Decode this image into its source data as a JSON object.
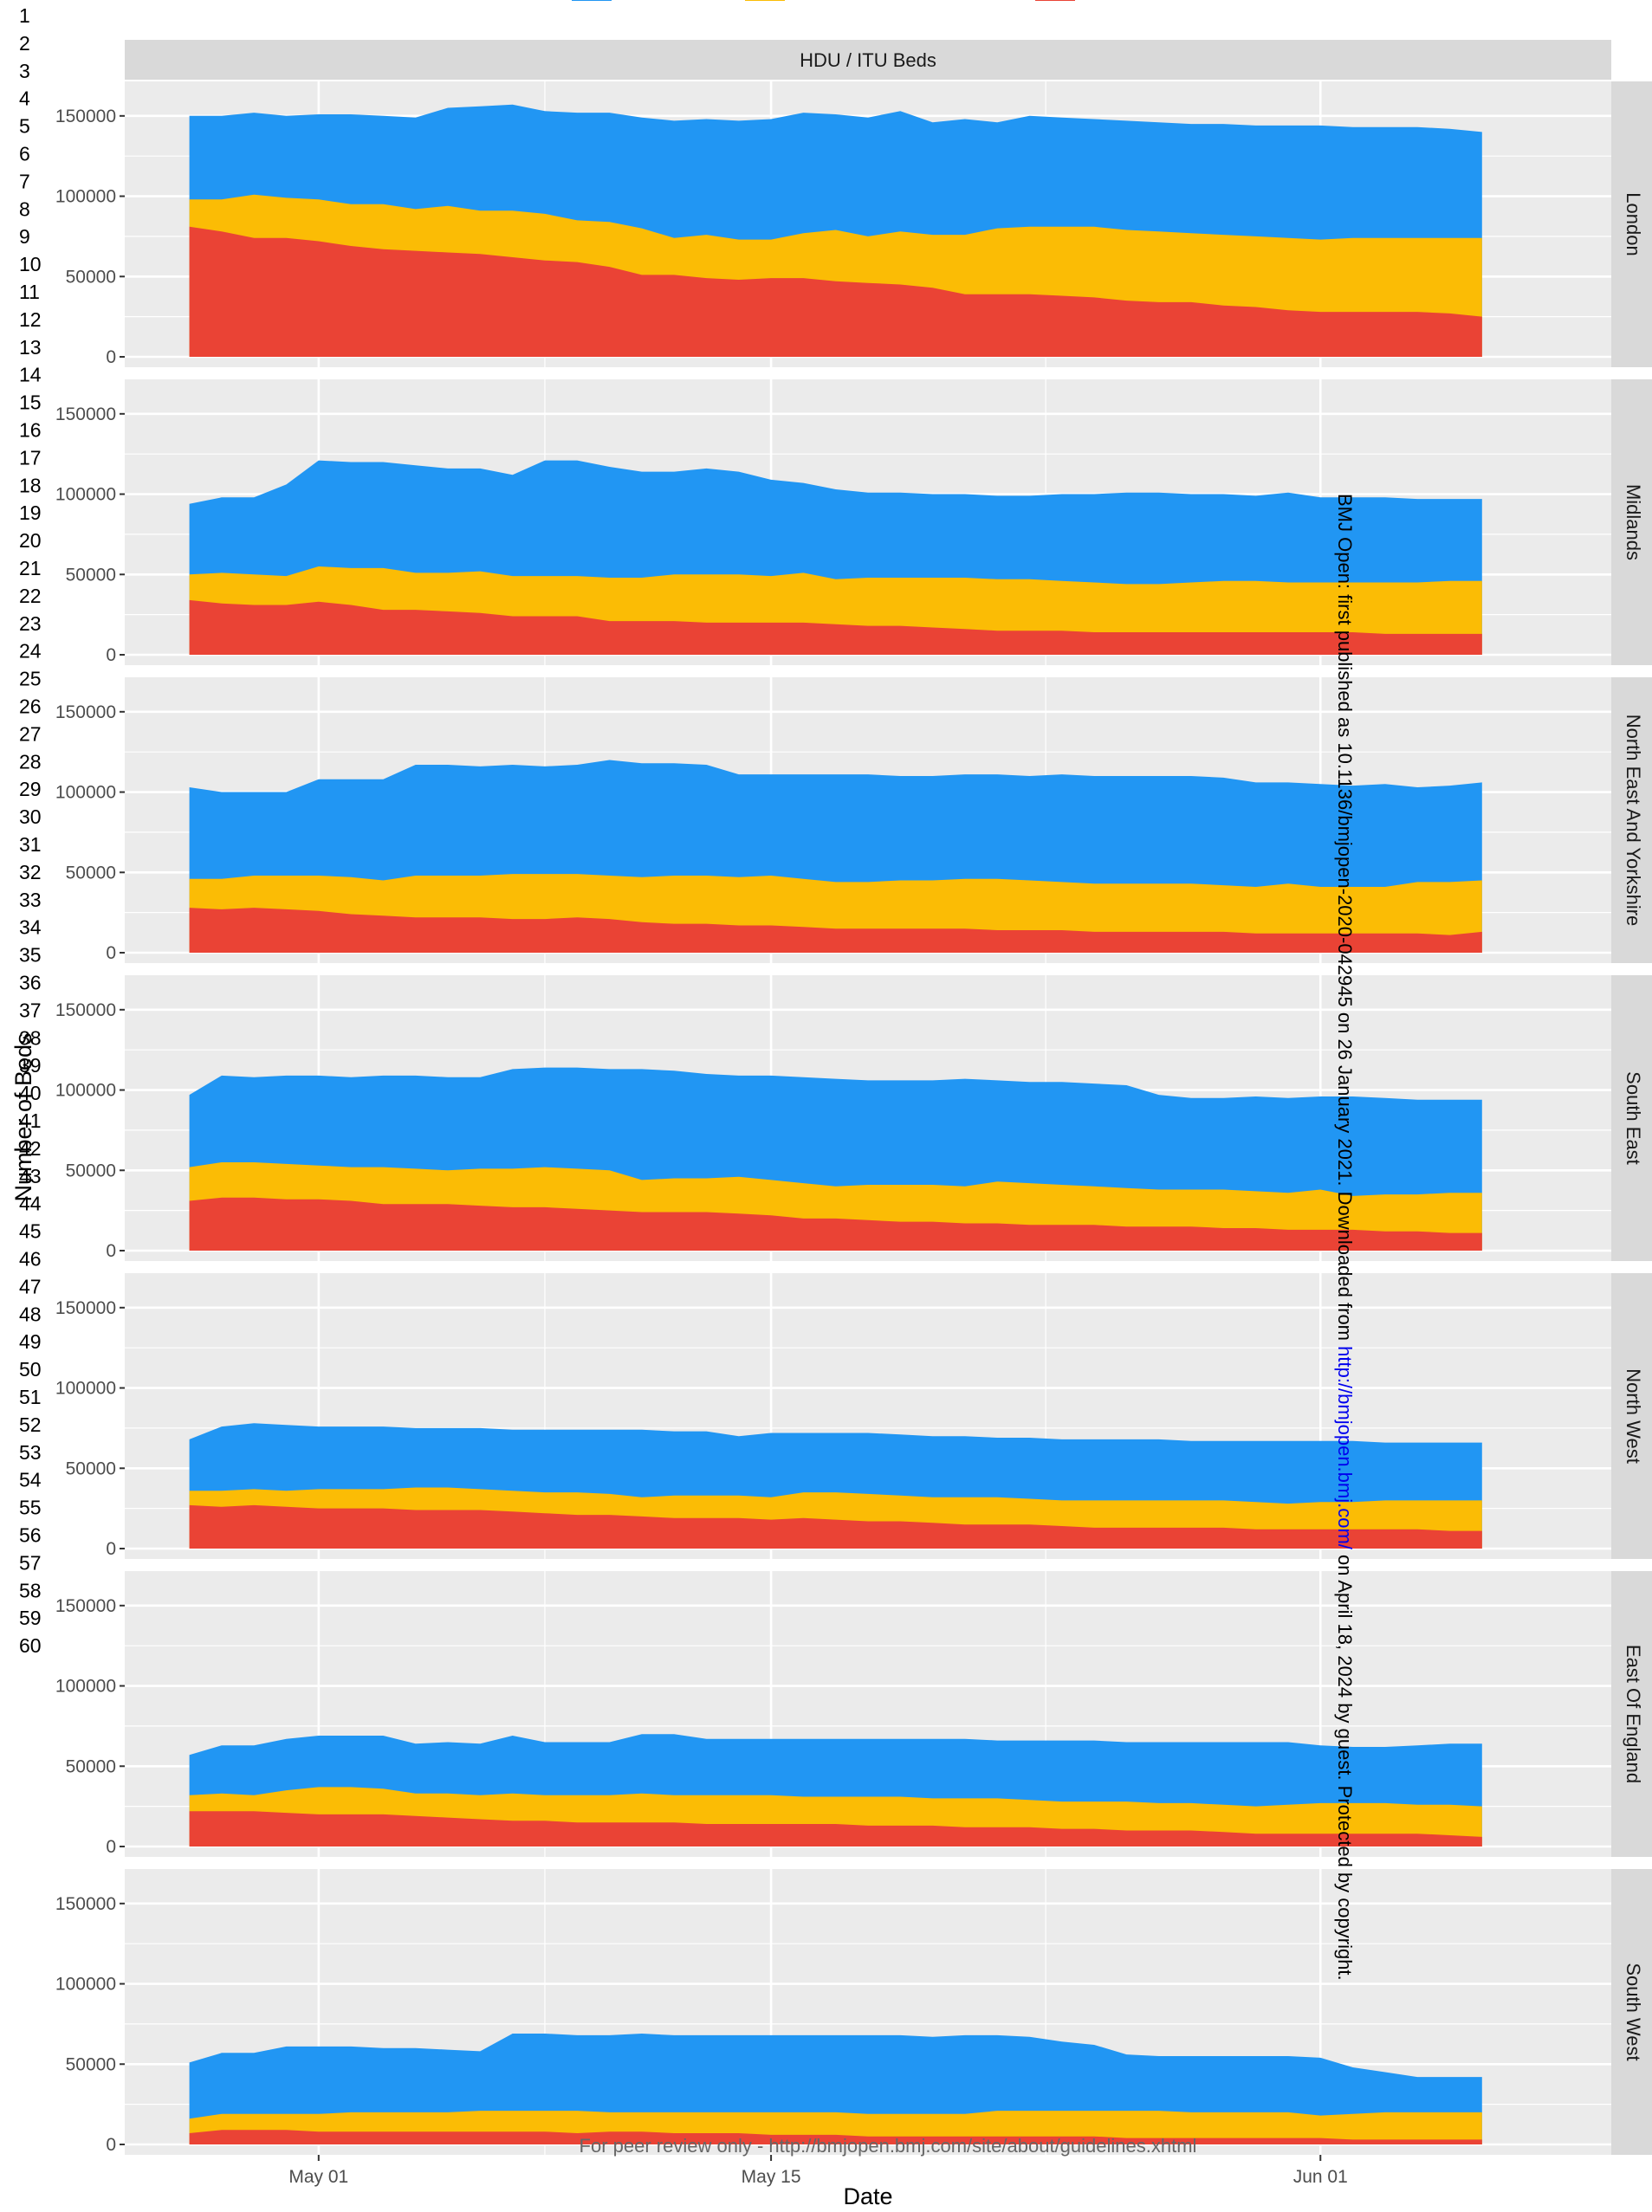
{
  "page_line_numbers": [
    "1",
    "2",
    "3",
    "4",
    "5",
    "6",
    "7",
    "8",
    "9",
    "10",
    "11",
    "12",
    "13",
    "14",
    "15",
    "16",
    "17",
    "18",
    "19",
    "20",
    "21",
    "22",
    "23",
    "24",
    "25",
    "26",
    "27",
    "28",
    "29",
    "30",
    "31",
    "32",
    "33",
    "34",
    "35",
    "36",
    "37",
    "38",
    "39",
    "40",
    "41",
    "42",
    "43",
    "44",
    "45",
    "46",
    "47",
    "48",
    "49",
    "50",
    "51",
    "52",
    "53",
    "54",
    "55",
    "56",
    "57",
    "58",
    "59",
    "60"
  ],
  "colors": {
    "series": [
      "#2196f3",
      "#fbbc05",
      "#ea4335"
    ],
    "panel_bg": "#ebebeb",
    "strip_bg": "#d9d9d9",
    "grid": "#ffffff"
  },
  "chart_data": {
    "type": "area",
    "stacked": true,
    "title": "HDU / ITU Beds",
    "xlabel": "Date",
    "ylabel": "Number of Beds",
    "ylim": [
      0,
      165000
    ],
    "yticks": [
      0,
      50000,
      100000,
      150000
    ],
    "ytick_labels": [
      "0",
      "50000",
      "100000",
      "150000"
    ],
    "xlim": [
      "2020-04-25",
      "2020-06-10"
    ],
    "xticks": [
      "2020-05-01",
      "2020-05-15",
      "2020-06-01"
    ],
    "xtick_labels": [
      "May 01",
      "May 15",
      "Jun 01"
    ],
    "grid": true,
    "legend": "top, entries cut off",
    "start_date": "2020-04-27",
    "end_date": "2020-06-06",
    "series_names": [
      "",
      "",
      ""
    ],
    "panels": [
      {
        "region": "London",
        "red": [
          81000,
          78000,
          74000,
          74000,
          72000,
          69000,
          67000,
          66000,
          65000,
          64000,
          62000,
          60000,
          59000,
          56000,
          51000,
          51000,
          49000,
          48000,
          49000,
          49000,
          47000,
          46000,
          45000,
          43000,
          39000,
          39000,
          39000,
          38000,
          37000,
          35000,
          34000,
          34000,
          32000,
          31000,
          29000,
          28000,
          28000,
          28000,
          28000,
          27000,
          25000
        ],
        "yellow": [
          98000,
          98000,
          101000,
          99000,
          98000,
          95000,
          95000,
          92000,
          94000,
          91000,
          91000,
          89000,
          85000,
          84000,
          80000,
          74000,
          76000,
          73000,
          73000,
          77000,
          79000,
          75000,
          78000,
          76000,
          76000,
          80000,
          81000,
          81000,
          81000,
          79000,
          78000,
          77000,
          76000,
          75000,
          74000,
          73000,
          74000,
          74000,
          74000,
          74000,
          74000
        ],
        "total": [
          150000,
          150000,
          152000,
          150000,
          151000,
          151000,
          150000,
          149000,
          155000,
          156000,
          157000,
          153000,
          152000,
          152000,
          149000,
          147000,
          148000,
          147000,
          148000,
          152000,
          151000,
          149000,
          153000,
          146000,
          148000,
          146000,
          150000,
          149000,
          148000,
          147000,
          146000,
          145000,
          145000,
          144000,
          144000,
          144000,
          143000,
          143000,
          143000,
          142000,
          140000
        ]
      },
      {
        "region": "Midlands",
        "red": [
          34000,
          32000,
          31000,
          31000,
          33000,
          31000,
          28000,
          28000,
          27000,
          26000,
          24000,
          24000,
          24000,
          21000,
          21000,
          21000,
          20000,
          20000,
          20000,
          20000,
          19000,
          18000,
          18000,
          17000,
          16000,
          15000,
          15000,
          15000,
          14000,
          14000,
          14000,
          14000,
          14000,
          14000,
          14000,
          14000,
          14000,
          13000,
          13000,
          13000,
          13000
        ],
        "yellow": [
          50000,
          51000,
          50000,
          49000,
          55000,
          54000,
          54000,
          51000,
          51000,
          52000,
          49000,
          49000,
          49000,
          48000,
          48000,
          50000,
          50000,
          50000,
          49000,
          51000,
          47000,
          48000,
          48000,
          48000,
          48000,
          47000,
          47000,
          46000,
          45000,
          44000,
          44000,
          45000,
          46000,
          46000,
          45000,
          45000,
          45000,
          45000,
          45000,
          46000,
          46000
        ],
        "total": [
          94000,
          98000,
          98000,
          106000,
          121000,
          120000,
          120000,
          118000,
          116000,
          116000,
          112000,
          121000,
          121000,
          117000,
          114000,
          114000,
          116000,
          114000,
          109000,
          107000,
          103000,
          101000,
          101000,
          100000,
          100000,
          99000,
          99000,
          100000,
          100000,
          101000,
          101000,
          100000,
          100000,
          99000,
          101000,
          98000,
          98000,
          98000,
          97000,
          97000,
          97000
        ]
      },
      {
        "region": "North East And Yorkshire",
        "red": [
          28000,
          27000,
          28000,
          27000,
          26000,
          24000,
          23000,
          22000,
          22000,
          22000,
          21000,
          21000,
          22000,
          21000,
          19000,
          18000,
          18000,
          17000,
          17000,
          16000,
          15000,
          15000,
          15000,
          15000,
          15000,
          14000,
          14000,
          14000,
          13000,
          13000,
          13000,
          13000,
          13000,
          12000,
          12000,
          12000,
          12000,
          12000,
          12000,
          11000,
          13000
        ],
        "yellow": [
          46000,
          46000,
          48000,
          48000,
          48000,
          47000,
          45000,
          48000,
          48000,
          48000,
          49000,
          49000,
          49000,
          48000,
          47000,
          48000,
          48000,
          47000,
          48000,
          46000,
          44000,
          44000,
          45000,
          45000,
          46000,
          46000,
          45000,
          44000,
          43000,
          43000,
          43000,
          43000,
          42000,
          41000,
          43000,
          41000,
          41000,
          41000,
          44000,
          44000,
          45000
        ],
        "total": [
          103000,
          100000,
          100000,
          100000,
          108000,
          108000,
          108000,
          117000,
          117000,
          116000,
          117000,
          116000,
          117000,
          120000,
          118000,
          118000,
          117000,
          111000,
          111000,
          111000,
          111000,
          111000,
          110000,
          110000,
          111000,
          111000,
          110000,
          111000,
          110000,
          110000,
          110000,
          110000,
          109000,
          106000,
          106000,
          105000,
          104000,
          105000,
          103000,
          104000,
          106000
        ]
      },
      {
        "region": "South East",
        "red": [
          31000,
          33000,
          33000,
          32000,
          32000,
          31000,
          29000,
          29000,
          29000,
          28000,
          27000,
          27000,
          26000,
          25000,
          24000,
          24000,
          24000,
          23000,
          22000,
          20000,
          20000,
          19000,
          18000,
          18000,
          17000,
          17000,
          16000,
          16000,
          16000,
          15000,
          15000,
          15000,
          14000,
          14000,
          13000,
          13000,
          13000,
          12000,
          12000,
          11000,
          11000
        ],
        "yellow": [
          52000,
          55000,
          55000,
          54000,
          53000,
          52000,
          52000,
          51000,
          50000,
          51000,
          51000,
          52000,
          51000,
          50000,
          44000,
          45000,
          45000,
          46000,
          44000,
          42000,
          40000,
          41000,
          41000,
          41000,
          40000,
          43000,
          42000,
          41000,
          40000,
          39000,
          38000,
          38000,
          38000,
          37000,
          36000,
          38000,
          34000,
          35000,
          35000,
          36000,
          36000
        ],
        "total": [
          97000,
          109000,
          108000,
          109000,
          109000,
          108000,
          109000,
          109000,
          108000,
          108000,
          113000,
          114000,
          114000,
          113000,
          113000,
          112000,
          110000,
          109000,
          109000,
          108000,
          107000,
          106000,
          106000,
          106000,
          107000,
          106000,
          105000,
          105000,
          104000,
          103000,
          97000,
          95000,
          95000,
          96000,
          95000,
          96000,
          96000,
          95000,
          94000,
          94000,
          94000
        ]
      },
      {
        "region": "North West",
        "red": [
          27000,
          26000,
          27000,
          26000,
          25000,
          25000,
          25000,
          24000,
          24000,
          24000,
          23000,
          22000,
          21000,
          21000,
          20000,
          19000,
          19000,
          19000,
          18000,
          19000,
          18000,
          17000,
          17000,
          16000,
          15000,
          15000,
          15000,
          14000,
          13000,
          13000,
          13000,
          13000,
          13000,
          12000,
          12000,
          12000,
          12000,
          12000,
          12000,
          11000,
          11000
        ],
        "yellow": [
          36000,
          36000,
          37000,
          36000,
          37000,
          37000,
          37000,
          38000,
          38000,
          37000,
          36000,
          35000,
          35000,
          34000,
          32000,
          33000,
          33000,
          33000,
          32000,
          35000,
          35000,
          34000,
          33000,
          32000,
          32000,
          32000,
          31000,
          30000,
          30000,
          30000,
          30000,
          30000,
          30000,
          29000,
          28000,
          29000,
          29000,
          30000,
          30000,
          30000,
          30000
        ],
        "total": [
          68000,
          76000,
          78000,
          77000,
          76000,
          76000,
          76000,
          75000,
          75000,
          75000,
          74000,
          74000,
          74000,
          74000,
          74000,
          73000,
          73000,
          70000,
          72000,
          72000,
          72000,
          72000,
          71000,
          70000,
          70000,
          69000,
          69000,
          68000,
          68000,
          68000,
          68000,
          67000,
          67000,
          67000,
          67000,
          67000,
          67000,
          66000,
          66000,
          66000,
          66000
        ]
      },
      {
        "region": "East Of England",
        "red": [
          22000,
          22000,
          22000,
          21000,
          20000,
          20000,
          20000,
          19000,
          18000,
          17000,
          16000,
          16000,
          15000,
          15000,
          15000,
          15000,
          14000,
          14000,
          14000,
          14000,
          14000,
          13000,
          13000,
          13000,
          12000,
          12000,
          12000,
          11000,
          11000,
          10000,
          10000,
          10000,
          9000,
          8000,
          8000,
          8000,
          8000,
          8000,
          8000,
          7000,
          6000
        ],
        "yellow": [
          32000,
          33000,
          32000,
          35000,
          37000,
          37000,
          36000,
          33000,
          33000,
          32000,
          33000,
          32000,
          32000,
          32000,
          33000,
          32000,
          32000,
          32000,
          32000,
          31000,
          31000,
          31000,
          31000,
          30000,
          30000,
          30000,
          29000,
          28000,
          28000,
          28000,
          27000,
          27000,
          26000,
          25000,
          26000,
          27000,
          27000,
          27000,
          26000,
          26000,
          25000
        ],
        "total": [
          57000,
          63000,
          63000,
          67000,
          69000,
          69000,
          69000,
          64000,
          65000,
          64000,
          69000,
          65000,
          65000,
          65000,
          70000,
          70000,
          67000,
          67000,
          67000,
          67000,
          67000,
          67000,
          67000,
          67000,
          67000,
          66000,
          66000,
          66000,
          66000,
          65000,
          65000,
          65000,
          65000,
          65000,
          65000,
          63000,
          62000,
          62000,
          63000,
          64000,
          64000
        ]
      },
      {
        "region": "South West",
        "red": [
          7000,
          9000,
          9000,
          9000,
          8000,
          8000,
          8000,
          8000,
          8000,
          8000,
          8000,
          8000,
          7000,
          8000,
          8000,
          7000,
          7000,
          7000,
          6000,
          6000,
          6000,
          5000,
          5000,
          5000,
          5000,
          5000,
          5000,
          5000,
          5000,
          4000,
          4000,
          4000,
          4000,
          4000,
          4000,
          4000,
          3000,
          3000,
          3000,
          3000,
          3000
        ],
        "yellow": [
          16000,
          19000,
          19000,
          19000,
          19000,
          20000,
          20000,
          20000,
          20000,
          21000,
          21000,
          21000,
          21000,
          20000,
          20000,
          20000,
          20000,
          20000,
          20000,
          20000,
          20000,
          19000,
          19000,
          19000,
          19000,
          21000,
          21000,
          21000,
          21000,
          21000,
          21000,
          20000,
          20000,
          20000,
          20000,
          18000,
          19000,
          20000,
          20000,
          20000,
          20000
        ],
        "total": [
          51000,
          57000,
          57000,
          61000,
          61000,
          61000,
          60000,
          60000,
          59000,
          58000,
          69000,
          69000,
          68000,
          68000,
          69000,
          68000,
          68000,
          68000,
          68000,
          68000,
          68000,
          68000,
          68000,
          67000,
          68000,
          68000,
          67000,
          64000,
          62000,
          56000,
          55000,
          55000,
          55000,
          55000,
          55000,
          54000,
          48000,
          45000,
          42000,
          42000,
          42000
        ]
      }
    ]
  },
  "watermark": {
    "before": "BMJ Open: first published as 10.1136/bmjopen-2020-042945 on 26 January 2021. Downloaded from ",
    "link": "http://bmjopen.bmj.com/",
    "after": " on April 18, 2024 by guest. Protected by copyright."
  },
  "footer": "For peer review only - http://bmjopen.bmj.com/site/about/guidelines.xhtml"
}
